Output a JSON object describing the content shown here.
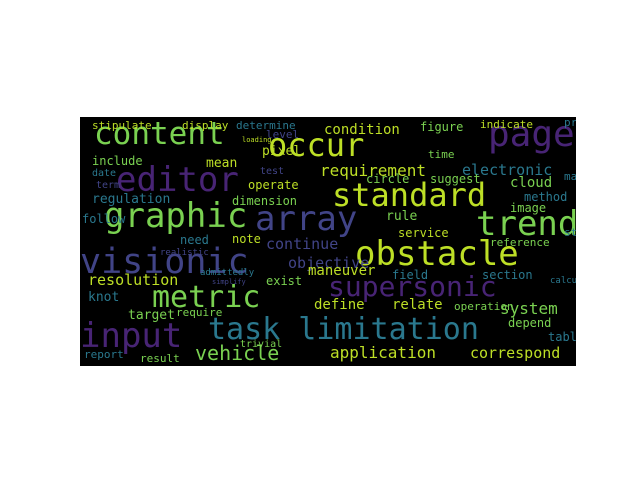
{
  "palette": {
    "background": "#000000",
    "viridis": [
      "#440154",
      "#482475",
      "#414487",
      "#355f8d",
      "#2a788e",
      "#21918c",
      "#22a884",
      "#44bf70",
      "#7ad151",
      "#bddf26",
      "#fde725"
    ]
  },
  "words": [
    {
      "text": "content",
      "color": "#7ad151"
    },
    {
      "text": "occur",
      "color": "#bddf26"
    },
    {
      "text": "page",
      "color": "#482475"
    },
    {
      "text": "editor",
      "color": "#482475"
    },
    {
      "text": "standard",
      "color": "#bddf26"
    },
    {
      "text": "graphic",
      "color": "#7ad151"
    },
    {
      "text": "array",
      "color": "#414487"
    },
    {
      "text": "trend",
      "color": "#7ad151"
    },
    {
      "text": "visionic",
      "color": "#414487"
    },
    {
      "text": "obstacle",
      "color": "#bddf26"
    },
    {
      "text": "metric",
      "color": "#7ad151"
    },
    {
      "text": "supersonic",
      "color": "#482475"
    },
    {
      "text": "input",
      "color": "#482475"
    },
    {
      "text": "task limitation",
      "color": "#2a788e"
    },
    {
      "text": "vehicle",
      "color": "#7ad151"
    },
    {
      "text": "application",
      "color": "#bddf26"
    },
    {
      "text": "correspond",
      "color": "#bddf26"
    },
    {
      "text": "requirement",
      "color": "#bddf26"
    },
    {
      "text": "condition",
      "color": "#bddf26"
    },
    {
      "text": "electronic",
      "color": "#2a788e"
    },
    {
      "text": "resolution",
      "color": "#bddf26"
    },
    {
      "text": "continue",
      "color": "#414487"
    },
    {
      "text": "objective",
      "color": "#414487"
    },
    {
      "text": "maneuver",
      "color": "#bddf26"
    },
    {
      "text": "system",
      "color": "#7ad151"
    },
    {
      "text": "define",
      "color": "#bddf26"
    },
    {
      "text": "relate",
      "color": "#bddf26"
    },
    {
      "text": "stipulate",
      "color": "#bddf26"
    },
    {
      "text": "display",
      "color": "#bddf26"
    },
    {
      "text": "determine",
      "color": "#2a788e"
    },
    {
      "text": "figure",
      "color": "#7ad151"
    },
    {
      "text": "indicate",
      "color": "#bddf26"
    },
    {
      "text": "include",
      "color": "#7ad151"
    },
    {
      "text": "mean",
      "color": "#bddf26"
    },
    {
      "text": "pixel",
      "color": "#bddf26"
    },
    {
      "text": "circle",
      "color": "#7ad151"
    },
    {
      "text": "suggest",
      "color": "#7ad151"
    },
    {
      "text": "cloud",
      "color": "#7ad151"
    },
    {
      "text": "method",
      "color": "#2a788e"
    },
    {
      "text": "image",
      "color": "#7ad151"
    },
    {
      "text": "regulation",
      "color": "#2a788e"
    },
    {
      "text": "operate",
      "color": "#bddf26"
    },
    {
      "text": "dimension",
      "color": "#7ad151"
    },
    {
      "text": "rule",
      "color": "#7ad151"
    },
    {
      "text": "service",
      "color": "#bddf26"
    },
    {
      "text": "reference",
      "color": "#7ad151"
    },
    {
      "text": "note",
      "color": "#bddf26"
    },
    {
      "text": "need",
      "color": "#2a788e"
    },
    {
      "text": "follow",
      "color": "#2a788e"
    },
    {
      "text": "knot",
      "color": "#2a788e"
    },
    {
      "text": "target",
      "color": "#7ad151"
    },
    {
      "text": "require",
      "color": "#7ad151"
    },
    {
      "text": "exist",
      "color": "#7ad151"
    },
    {
      "text": "field",
      "color": "#2a788e"
    },
    {
      "text": "section",
      "color": "#2a788e"
    },
    {
      "text": "operation",
      "color": "#7ad151"
    },
    {
      "text": "depend",
      "color": "#7ad151"
    },
    {
      "text": "table",
      "color": "#2a788e"
    },
    {
      "text": "report",
      "color": "#2a788e"
    },
    {
      "text": "result",
      "color": "#7ad151"
    },
    {
      "text": "provide",
      "color": "#2a788e"
    },
    {
      "text": "maintain",
      "color": "#2a788e"
    },
    {
      "text": "state",
      "color": "#2a788e"
    },
    {
      "text": "level",
      "color": "#414487"
    },
    {
      "text": "date",
      "color": "#2a788e"
    },
    {
      "text": "term",
      "color": "#414487"
    },
    {
      "text": "time",
      "color": "#7ad151"
    },
    {
      "text": "test",
      "color": "#414487"
    },
    {
      "text": "trivial",
      "color": "#7ad151"
    },
    {
      "text": "simplify",
      "color": "#414487"
    },
    {
      "text": "realistic",
      "color": "#414487"
    },
    {
      "text": "admittedly",
      "color": "#2a788e"
    },
    {
      "text": "loading",
      "color": "#bddf26"
    },
    {
      "text": "calculate",
      "color": "#2a788e"
    }
  ]
}
